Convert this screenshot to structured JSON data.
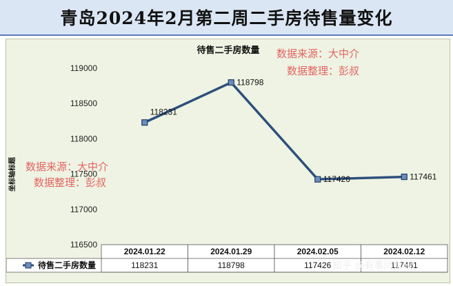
{
  "banner_title": "青岛2024年2月第二周二手房待售量变化",
  "watermarks": [
    "数据来源：大中介",
    "数据整理：彭叔"
  ],
  "footer_watermark": "知乎 @有事问彭叔",
  "chart_data": {
    "type": "line",
    "title": "待售二手房数量",
    "ylabel": "坐标轴标题",
    "categories": [
      "2024.01.22",
      "2024.01.29",
      "2024.02.05",
      "2024.02.12"
    ],
    "series": [
      {
        "name": "待售二手房数量",
        "values": [
          118231,
          118798,
          117426,
          117461
        ],
        "color": "#2d4f7c"
      }
    ],
    "ylim": [
      116500,
      119000
    ],
    "yticks": [
      116500,
      117000,
      117500,
      118000,
      118500,
      119000
    ],
    "grid": false,
    "data_table": true
  }
}
